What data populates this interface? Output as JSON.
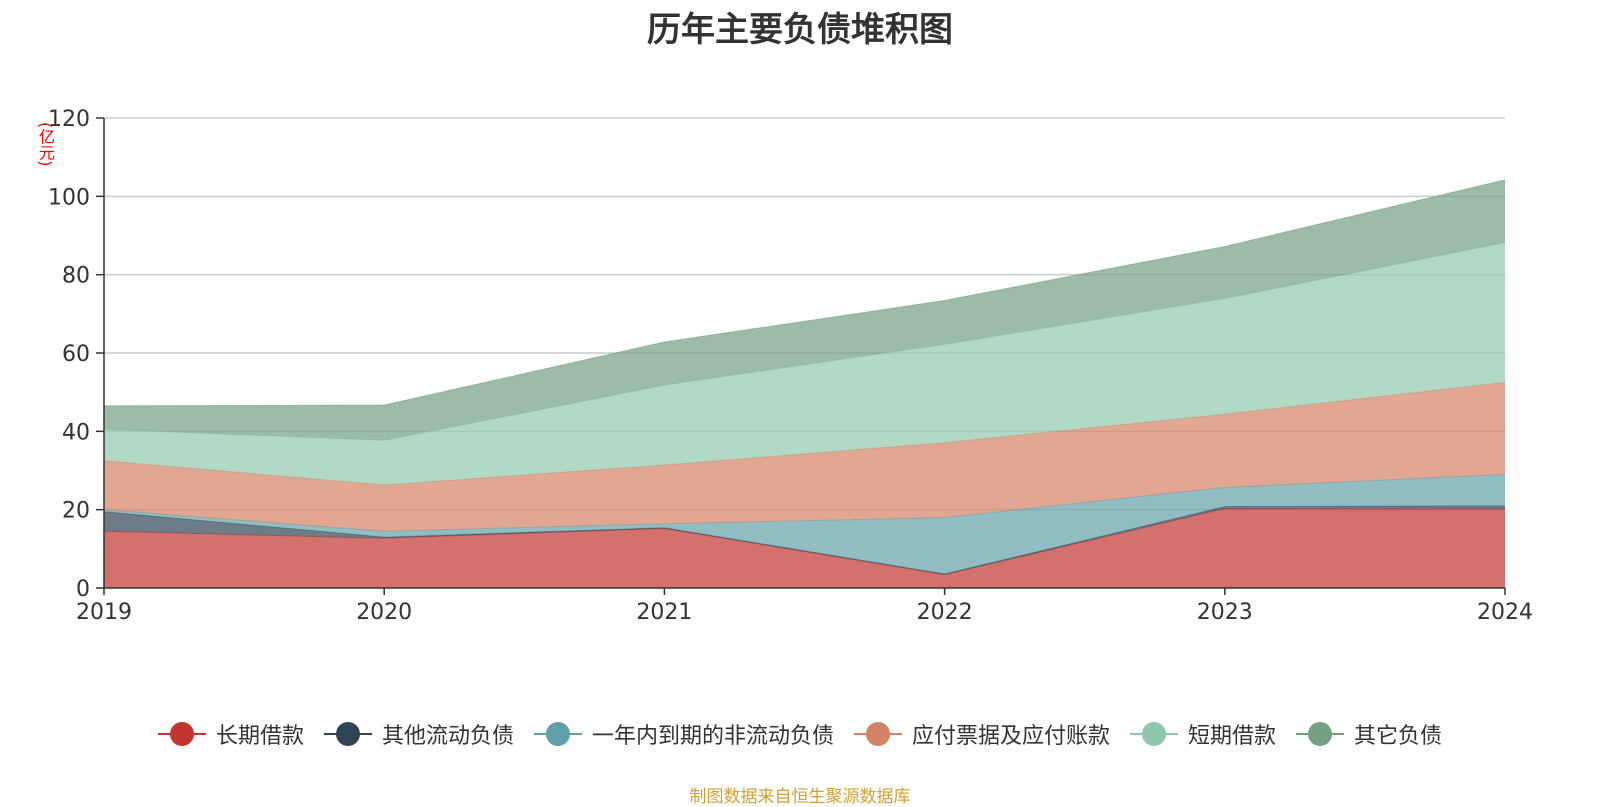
{
  "chart_data": {
    "type": "area",
    "stacked": true,
    "title": "历年主要负债堆积图",
    "unit_label": "(亿元)",
    "source_note": "制图数据来自恒生聚源数据库",
    "categories": [
      "2019",
      "2020",
      "2021",
      "2022",
      "2023",
      "2024"
    ],
    "ylim": [
      0,
      120
    ],
    "yticks": [
      0,
      20,
      40,
      60,
      80,
      100,
      120
    ],
    "grid": true,
    "legend_position": "bottom",
    "series": [
      {
        "name": "长期借款",
        "color": "#c23531",
        "values": [
          14.5,
          12.7,
          15.2,
          3.4,
          20.3,
          20.2
        ]
      },
      {
        "name": "其他流动负债",
        "color": "#2f4554",
        "values": [
          5.0,
          0.3,
          0.2,
          0.2,
          0.5,
          0.8
        ]
      },
      {
        "name": "一年内到期的非流动负债",
        "color": "#61a0a8",
        "values": [
          0.5,
          1.5,
          1.0,
          14.4,
          4.9,
          8.0
        ]
      },
      {
        "name": "应付票据及应付账款",
        "color": "#d48265",
        "values": [
          12.5,
          11.8,
          15.0,
          19.1,
          18.7,
          23.5
        ]
      },
      {
        "name": "短期借款",
        "color": "#91c7ae",
        "values": [
          8.0,
          11.4,
          20.4,
          25.1,
          29.5,
          35.7
        ]
      },
      {
        "name": "其它负债",
        "color": "#749f83",
        "values": [
          6.0,
          9.0,
          11.0,
          11.2,
          13.3,
          16.0
        ]
      }
    ]
  }
}
